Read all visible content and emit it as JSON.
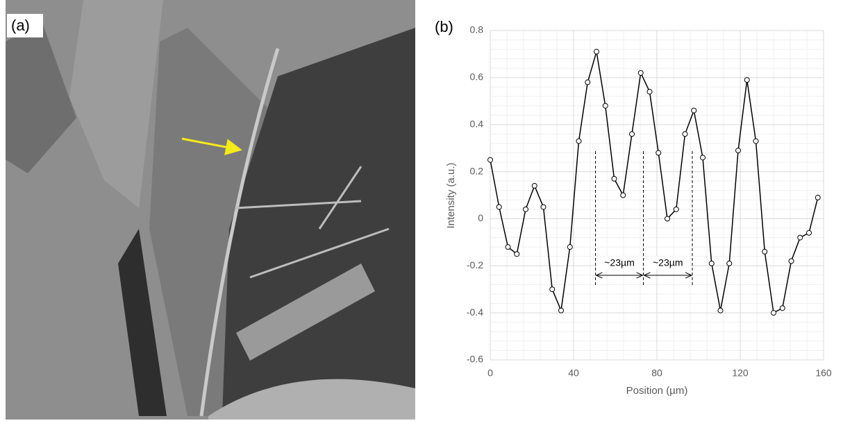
{
  "panels": [
    "(a)",
    "(b)"
  ],
  "chart_data": {
    "type": "line",
    "xlabel": "Position (µm)",
    "ylabel": "Intensity (a.u.)",
    "x": [
      0,
      4.25,
      8.5,
      12.75,
      17,
      21.25,
      25.5,
      29.75,
      34,
      38.25,
      42.5,
      46.75,
      51,
      55.25,
      59.5,
      63.75,
      68,
      72.25,
      76.5,
      80.75,
      85,
      89.25,
      93.5,
      97.75,
      102,
      106.25,
      110.5,
      114.75,
      119,
      123.25,
      127.5,
      131.75,
      136,
      140.25,
      144.5,
      148.75,
      153,
      157.25
    ],
    "values": [
      0.25,
      0.05,
      -0.12,
      -0.15,
      0.04,
      0.14,
      0.05,
      -0.3,
      -0.39,
      -0.12,
      0.33,
      0.58,
      0.71,
      0.48,
      0.17,
      0.1,
      0.36,
      0.62,
      0.54,
      0.28,
      0.0,
      0.04,
      0.36,
      0.46,
      0.26,
      -0.19,
      -0.39,
      -0.19,
      0.29,
      0.59,
      0.33,
      -0.14,
      -0.4,
      -0.38,
      -0.18,
      -0.08,
      -0.06,
      0.09
    ],
    "color": "#000000",
    "xlim": [
      0,
      160
    ],
    "xticks": [
      0,
      40,
      80,
      120,
      160
    ],
    "ylim": [
      -0.6,
      0.8
    ],
    "yticks": [
      -0.6,
      -0.4,
      -0.2,
      0,
      0.2,
      0.4,
      0.6,
      0.8
    ],
    "grid": true,
    "minor_grid": true,
    "annotations": [
      {
        "label": "~23µm",
        "x": [
          50.5,
          73.5
        ]
      },
      {
        "label": "~23µm",
        "x": [
          73.5,
          97
        ]
      }
    ]
  }
}
